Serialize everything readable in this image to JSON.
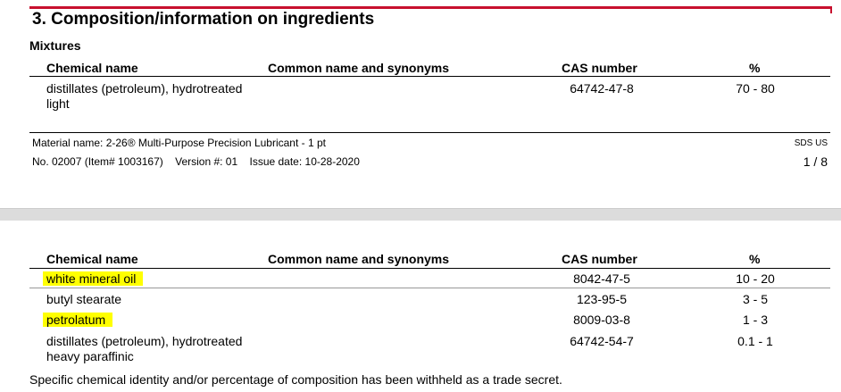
{
  "section_title": "3. Composition/information on ingredients",
  "subsection": "Mixtures",
  "headers": {
    "chemical_name": "Chemical name",
    "common_name": "Common name and synonyms",
    "cas": "CAS number",
    "percent": "%"
  },
  "table1": [
    {
      "name1": "distillates (petroleum), hydrotreated",
      "name2": "light",
      "cas": "64742-47-8",
      "percent": "70 - 80"
    }
  ],
  "footer": {
    "material": "Material name: 2-26® Multi-Purpose Precision Lubricant - 1 pt",
    "doc_info": "No. 02007 (Item# 1003167)    Version #: 01    Issue date: 10-28-2020",
    "sds": "SDS US",
    "page": "1 / 8"
  },
  "table2": [
    {
      "name1": "white mineral oil",
      "cas": "8042-47-5",
      "percent": "10 - 20",
      "highlight": "#ffff00"
    },
    {
      "name1": "butyl stearate",
      "cas": "123-95-5",
      "percent": "3 - 5"
    },
    {
      "name1": "petrolatum",
      "cas": "8009-03-8",
      "percent": "1 - 3",
      "highlight": "#ffff00"
    },
    {
      "name1": "distillates (petroleum), hydrotreated",
      "name2": "heavy paraffinic",
      "cas": "64742-54-7",
      "percent": "0.1 - 1"
    }
  ],
  "note": "Specific chemical identity and/or percentage of composition has been withheld as a trade secret."
}
